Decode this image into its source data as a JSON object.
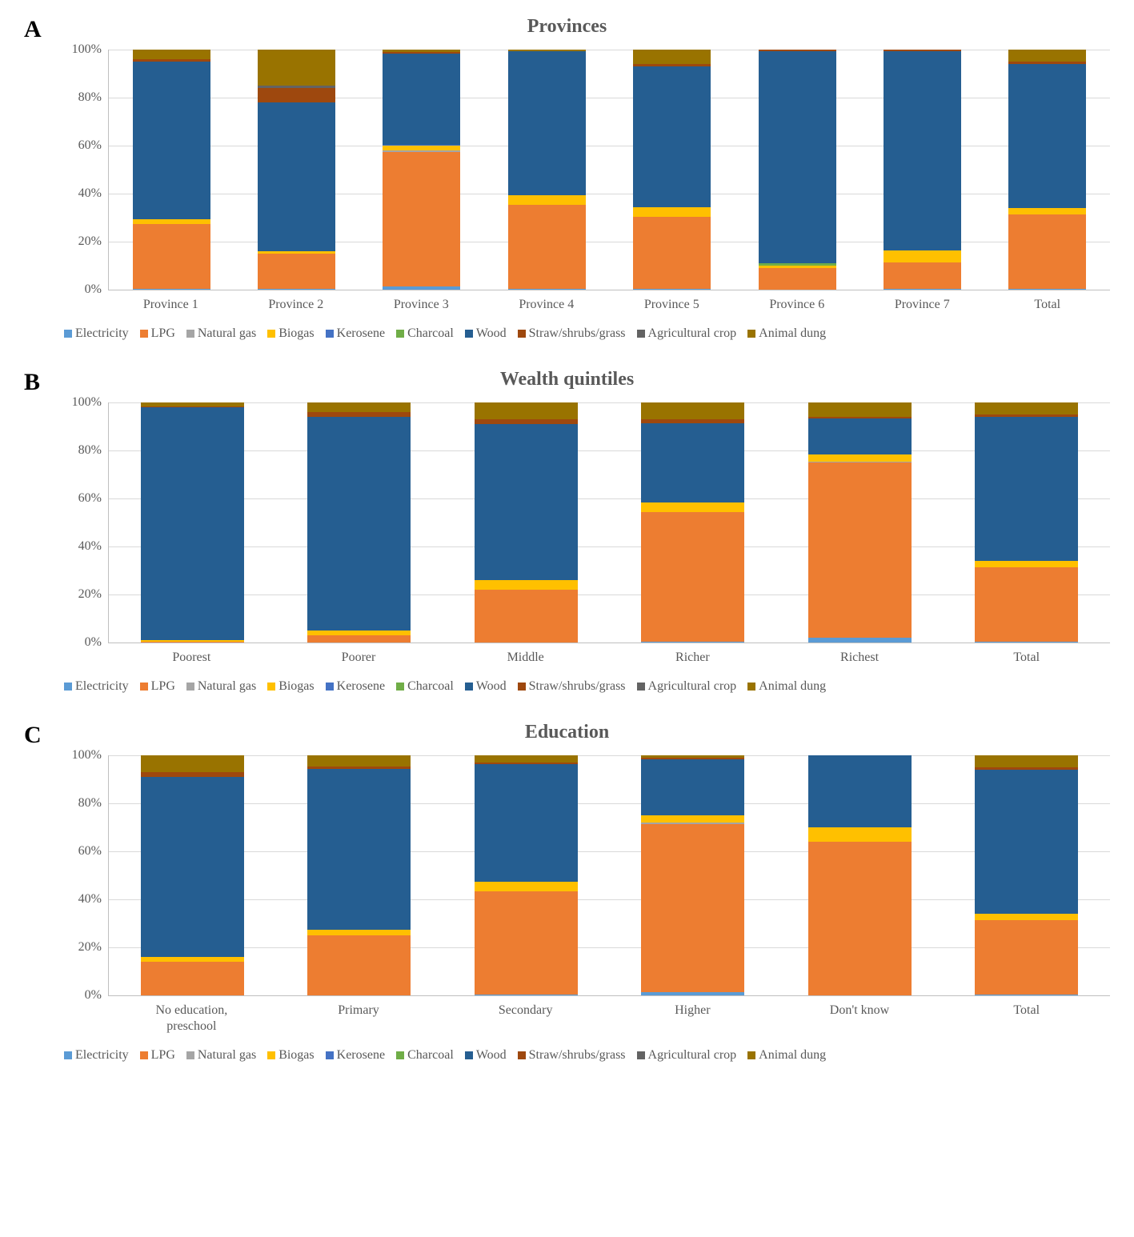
{
  "colors": {
    "Electricity": "#5b9bd5",
    "LPG": "#ed7d31",
    "Natural gas": "#a5a5a5",
    "Biogas": "#ffc000",
    "Kerosene": "#4472c4",
    "Charcoal": "#70ad47",
    "Wood": "#255e91",
    "Straw/shrubs/grass": "#9e480e",
    "Agricultural crop": "#636363",
    "Animal dung": "#997300"
  },
  "series_order": [
    "Electricity",
    "LPG",
    "Natural gas",
    "Biogas",
    "Kerosene",
    "Charcoal",
    "Wood",
    "Straw/shrubs/grass",
    "Agricultural crop",
    "Animal dung"
  ],
  "axis": {
    "ymin": 0,
    "ymax": 100,
    "ystep": 20,
    "ticklabels": [
      "100%",
      "80%",
      "60%",
      "40%",
      "20%",
      "0%"
    ],
    "grid_color": "#d9d9d9",
    "axis_color": "#bfbfbf",
    "text_color": "#595959",
    "tick_fontsize": 16,
    "title_fontsize": 24,
    "letter_fontsize": 30,
    "legend_fontsize": 16
  },
  "panels": [
    {
      "letter": "A",
      "title": "Provinces",
      "categories": [
        "Province 1",
        "Province 2",
        "Province 3",
        "Province 4",
        "Province 5",
        "Province 6",
        "Province 7",
        "Total"
      ],
      "data": [
        {
          "Electricity": 0.5,
          "LPG": 27,
          "Natural gas": 0,
          "Biogas": 2,
          "Kerosene": 0,
          "Charcoal": 0,
          "Wood": 65.5,
          "Straw/shrubs/grass": 1,
          "Agricultural crop": 0,
          "Animal dung": 4
        },
        {
          "Electricity": 0.5,
          "LPG": 14.5,
          "Natural gas": 0,
          "Biogas": 1,
          "Kerosene": 0,
          "Charcoal": 0,
          "Wood": 62,
          "Straw/shrubs/grass": 6,
          "Agricultural crop": 1,
          "Animal dung": 15
        },
        {
          "Electricity": 1.5,
          "LPG": 56,
          "Natural gas": 0.5,
          "Biogas": 2,
          "Kerosene": 0.5,
          "Charcoal": 0,
          "Wood": 38,
          "Straw/shrubs/grass": 0.5,
          "Agricultural crop": 0,
          "Animal dung": 1
        },
        {
          "Electricity": 0.5,
          "LPG": 35,
          "Natural gas": 0,
          "Biogas": 4,
          "Kerosene": 0,
          "Charcoal": 0,
          "Wood": 60,
          "Straw/shrubs/grass": 0,
          "Agricultural crop": 0,
          "Animal dung": 0.5
        },
        {
          "Electricity": 0.5,
          "LPG": 30,
          "Natural gas": 0,
          "Biogas": 4,
          "Kerosene": 0,
          "Charcoal": 0,
          "Wood": 58.5,
          "Straw/shrubs/grass": 1,
          "Agricultural crop": 0,
          "Animal dung": 6
        },
        {
          "Electricity": 0,
          "LPG": 9,
          "Natural gas": 0,
          "Biogas": 1,
          "Kerosene": 0,
          "Charcoal": 1,
          "Wood": 88.5,
          "Straw/shrubs/grass": 0.5,
          "Agricultural crop": 0,
          "Animal dung": 0
        },
        {
          "Electricity": 0.5,
          "LPG": 11,
          "Natural gas": 0,
          "Biogas": 5,
          "Kerosene": 0,
          "Charcoal": 0,
          "Wood": 83,
          "Straw/shrubs/grass": 0.5,
          "Agricultural crop": 0,
          "Animal dung": 0
        },
        {
          "Electricity": 0.5,
          "LPG": 31,
          "Natural gas": 0,
          "Biogas": 2.5,
          "Kerosene": 0,
          "Charcoal": 0,
          "Wood": 60,
          "Straw/shrubs/grass": 1,
          "Agricultural crop": 0,
          "Animal dung": 5
        }
      ]
    },
    {
      "letter": "B",
      "title": "Wealth quintiles",
      "categories": [
        "Poorest",
        "Poorer",
        "Middle",
        "Richer",
        "Richest",
        "Total"
      ],
      "data": [
        {
          "Electricity": 0,
          "LPG": 0.5,
          "Natural gas": 0,
          "Biogas": 0.5,
          "Kerosene": 0,
          "Charcoal": 0,
          "Wood": 97,
          "Straw/shrubs/grass": 0.5,
          "Agricultural crop": 0,
          "Animal dung": 1.5
        },
        {
          "Electricity": 0,
          "LPG": 3,
          "Natural gas": 0,
          "Biogas": 2,
          "Kerosene": 0,
          "Charcoal": 0,
          "Wood": 89,
          "Straw/shrubs/grass": 2,
          "Agricultural crop": 0,
          "Animal dung": 4
        },
        {
          "Electricity": 0,
          "LPG": 22,
          "Natural gas": 0,
          "Biogas": 4,
          "Kerosene": 0,
          "Charcoal": 0,
          "Wood": 65,
          "Straw/shrubs/grass": 2,
          "Agricultural crop": 0,
          "Animal dung": 7
        },
        {
          "Electricity": 0.5,
          "LPG": 54,
          "Natural gas": 0,
          "Biogas": 4,
          "Kerosene": 0,
          "Charcoal": 0,
          "Wood": 33,
          "Straw/shrubs/grass": 1.5,
          "Agricultural crop": 0,
          "Animal dung": 7
        },
        {
          "Electricity": 2,
          "LPG": 73,
          "Natural gas": 0.5,
          "Biogas": 3,
          "Kerosene": 0,
          "Charcoal": 0,
          "Wood": 15,
          "Straw/shrubs/grass": 0.5,
          "Agricultural crop": 0,
          "Animal dung": 6
        },
        {
          "Electricity": 0.5,
          "LPG": 31,
          "Natural gas": 0,
          "Biogas": 2.5,
          "Kerosene": 0,
          "Charcoal": 0,
          "Wood": 60,
          "Straw/shrubs/grass": 1,
          "Agricultural crop": 0,
          "Animal dung": 5
        }
      ]
    },
    {
      "letter": "C",
      "title": "Education",
      "categories": [
        "No education,\npreschool",
        "Primary",
        "Secondary",
        "Higher",
        "Don't know",
        "Total"
      ],
      "data": [
        {
          "Electricity": 0,
          "LPG": 14,
          "Natural gas": 0,
          "Biogas": 2,
          "Kerosene": 0,
          "Charcoal": 0,
          "Wood": 75,
          "Straw/shrubs/grass": 2,
          "Agricultural crop": 0,
          "Animal dung": 7
        },
        {
          "Electricity": 0,
          "LPG": 25,
          "Natural gas": 0,
          "Biogas": 2.5,
          "Kerosene": 0,
          "Charcoal": 0,
          "Wood": 67,
          "Straw/shrubs/grass": 1,
          "Agricultural crop": 0,
          "Animal dung": 4.5
        },
        {
          "Electricity": 0.5,
          "LPG": 43,
          "Natural gas": 0,
          "Biogas": 4,
          "Kerosene": 0,
          "Charcoal": 0,
          "Wood": 49,
          "Straw/shrubs/grass": 0.5,
          "Agricultural crop": 0,
          "Animal dung": 3
        },
        {
          "Electricity": 1.5,
          "LPG": 70,
          "Natural gas": 0.5,
          "Biogas": 3,
          "Kerosene": 0,
          "Charcoal": 0,
          "Wood": 23.5,
          "Straw/shrubs/grass": 0.5,
          "Agricultural crop": 0,
          "Animal dung": 1
        },
        {
          "Electricity": 0,
          "LPG": 64,
          "Natural gas": 0,
          "Biogas": 6,
          "Kerosene": 0,
          "Charcoal": 0,
          "Wood": 30,
          "Straw/shrubs/grass": 0,
          "Agricultural crop": 0,
          "Animal dung": 0
        },
        {
          "Electricity": 0.5,
          "LPG": 31,
          "Natural gas": 0,
          "Biogas": 2.5,
          "Kerosene": 0,
          "Charcoal": 0,
          "Wood": 60,
          "Straw/shrubs/grass": 1,
          "Agricultural crop": 0,
          "Animal dung": 5
        }
      ]
    }
  ]
}
